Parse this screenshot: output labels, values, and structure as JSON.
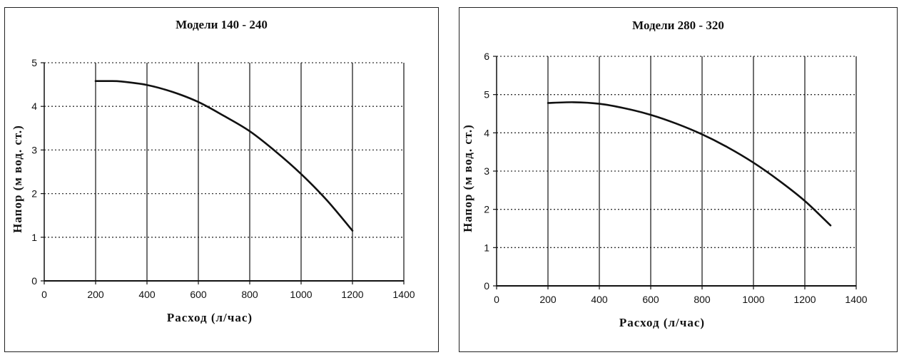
{
  "chart_data": [
    {
      "type": "line",
      "title": "Модели 140 - 240",
      "xlabel": "Расход (л/час)",
      "ylabel": "Напор (м вод. ст.)",
      "xlim": [
        0,
        1400
      ],
      "ylim": [
        0,
        5
      ],
      "xticks": [
        0,
        200,
        400,
        600,
        800,
        1000,
        1200,
        1400
      ],
      "yticks": [
        0,
        1,
        2,
        3,
        4,
        5
      ],
      "grid": true,
      "series": [
        {
          "x": [
            200,
            250,
            300,
            400,
            500,
            600,
            700,
            800,
            900,
            1000,
            1100,
            1200
          ],
          "y": [
            4.58,
            4.58,
            4.57,
            4.49,
            4.33,
            4.1,
            3.78,
            3.43,
            2.97,
            2.45,
            1.85,
            1.15
          ]
        }
      ]
    },
    {
      "type": "line",
      "title": "Модели 280 - 320",
      "xlabel": "Расход (л/час)",
      "ylabel": "Напор (м вод. ст.)",
      "xlim": [
        0,
        1400
      ],
      "ylim": [
        0,
        6
      ],
      "xticks": [
        0,
        200,
        400,
        600,
        800,
        1000,
        1200,
        1400
      ],
      "yticks": [
        0,
        1,
        2,
        3,
        4,
        5,
        6
      ],
      "grid": true,
      "series": [
        {
          "x": [
            200,
            300,
            400,
            500,
            600,
            700,
            800,
            900,
            1000,
            1100,
            1200,
            1300
          ],
          "y": [
            4.78,
            4.8,
            4.76,
            4.64,
            4.47,
            4.24,
            3.96,
            3.62,
            3.22,
            2.75,
            2.22,
            1.58
          ]
        }
      ]
    }
  ]
}
